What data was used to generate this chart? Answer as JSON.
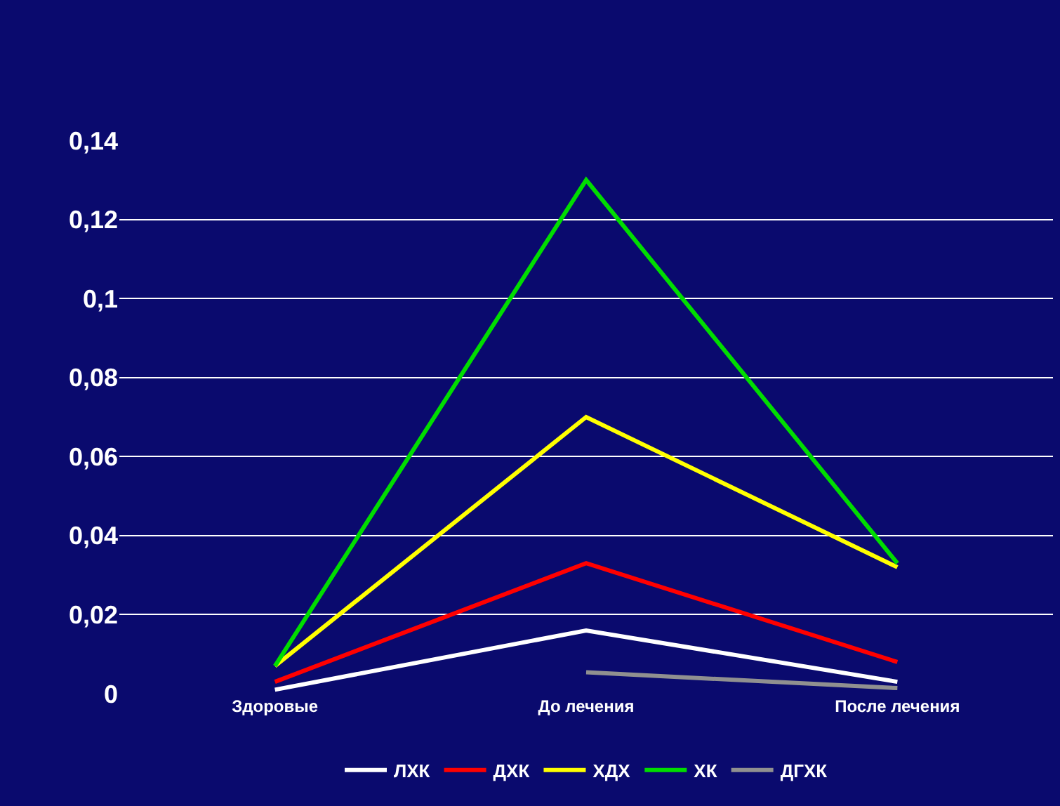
{
  "chart_data": {
    "type": "line",
    "categories": [
      "Здоровые",
      "До лечения",
      "После лечения"
    ],
    "series": [
      {
        "name": "ЛХК",
        "color": "#ffffff",
        "values": [
          0.001,
          0.016,
          0.003
        ]
      },
      {
        "name": "ДХК",
        "color": "#ff0000",
        "values": [
          0.003,
          0.033,
          0.008
        ]
      },
      {
        "name": "ХДХ",
        "color": "#ffff00",
        "values": [
          0.007,
          0.07,
          0.032
        ]
      },
      {
        "name": "ХК",
        "color": "#00dd00",
        "values": [
          0.007,
          0.13,
          0.033
        ]
      },
      {
        "name": "ДГХК",
        "color": "#909090",
        "values": [
          null,
          0.0054,
          0.0014
        ]
      }
    ],
    "ylim": [
      0,
      0.14
    ],
    "yticks": [
      {
        "value": 0,
        "label": "0"
      },
      {
        "value": 0.02,
        "label": "0,02"
      },
      {
        "value": 0.04,
        "label": "0,04"
      },
      {
        "value": 0.06,
        "label": "0,06"
      },
      {
        "value": 0.08,
        "label": "0,08"
      },
      {
        "value": 0.1,
        "label": "0,1"
      },
      {
        "value": 0.12,
        "label": "0,12"
      },
      {
        "value": 0.14,
        "label": "0,14"
      }
    ],
    "grid": "y",
    "legend": "bottom",
    "marker": "none",
    "line_style": "solid"
  }
}
